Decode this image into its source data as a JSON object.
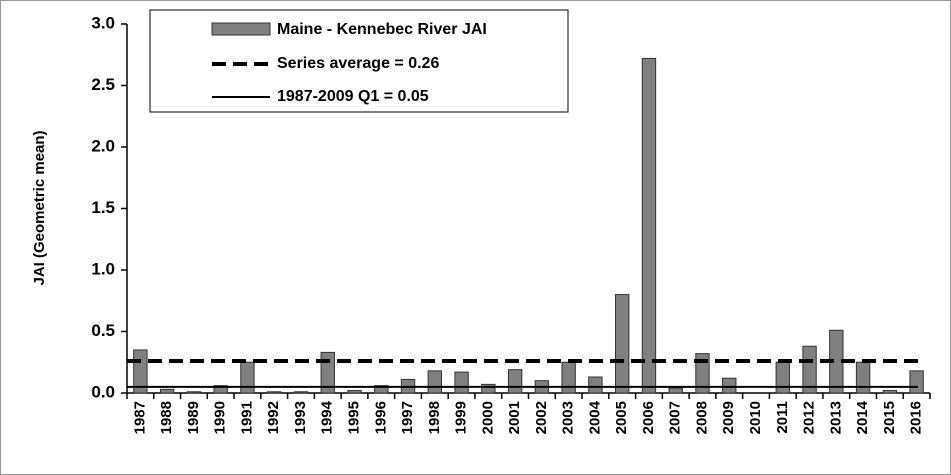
{
  "chart_data": {
    "type": "bar",
    "categories": [
      "1987",
      "1988",
      "1989",
      "1990",
      "1991",
      "1992",
      "1993",
      "1994",
      "1995",
      "1996",
      "1997",
      "1998",
      "1999",
      "2000",
      "2001",
      "2002",
      "2003",
      "2004",
      "2005",
      "2006",
      "2007",
      "2008",
      "2009",
      "2010",
      "2011",
      "2012",
      "2013",
      "2014",
      "2015",
      "2016"
    ],
    "series": [
      {
        "name": "Maine - Kennebec River JAI",
        "color": "#808080",
        "values": [
          0.35,
          0.03,
          0.01,
          0.06,
          0.25,
          0.01,
          0.01,
          0.33,
          0.02,
          0.06,
          0.11,
          0.18,
          0.17,
          0.07,
          0.19,
          0.1,
          0.25,
          0.13,
          0.8,
          2.72,
          0.04,
          0.32,
          0.12,
          0,
          0.25,
          0.38,
          0.51,
          0.25,
          0.02,
          0.18
        ]
      }
    ],
    "reference_lines": [
      {
        "name": "Series average = 0.26",
        "value": 0.26,
        "style": "dashed"
      },
      {
        "name": "1987-2009 Q1 = 0.05",
        "value": 0.05,
        "style": "solid"
      }
    ],
    "ylabel": "JAI (Geometric mean)",
    "ylim": [
      0,
      3
    ],
    "yticks": [
      {
        "value": 0,
        "label": "0.0"
      },
      {
        "value": 0.5,
        "label": "0.5"
      },
      {
        "value": 1,
        "label": "1.0"
      },
      {
        "value": 1.5,
        "label": "1.5"
      },
      {
        "value": 2,
        "label": "2.0"
      },
      {
        "value": 2.5,
        "label": "2.5"
      },
      {
        "value": 3,
        "label": "3.0"
      }
    ],
    "grid": false
  }
}
